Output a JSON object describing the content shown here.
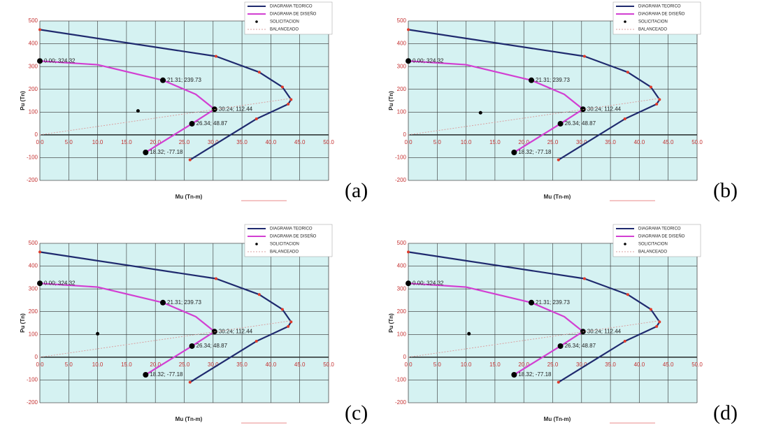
{
  "chart_data": [
    {
      "type": "line",
      "panel_label": "(a)",
      "x_label": "Mu (Tn-m)",
      "y_label": "Pu (Tn)",
      "xlim": [
        0,
        50
      ],
      "ylim": [
        -200,
        500
      ],
      "xticks": [
        {
          "value": 0,
          "label": "0.0"
        },
        {
          "value": 5,
          "label": "5.0"
        },
        {
          "value": 10,
          "label": "10.0"
        },
        {
          "value": 15,
          "label": "15.0"
        },
        {
          "value": 20,
          "label": "20.0"
        },
        {
          "value": 25,
          "label": "25.0"
        },
        {
          "value": 30,
          "label": "30.0"
        },
        {
          "value": 35,
          "label": "35.0"
        },
        {
          "value": 40,
          "label": "40.0"
        },
        {
          "value": 45,
          "label": "45.0"
        },
        {
          "value": 50,
          "label": "50.0"
        }
      ],
      "yticks": [
        -200,
        -100,
        0,
        100,
        200,
        300,
        400,
        500
      ],
      "grid": true,
      "legend": "top-right",
      "series": [
        {
          "name": "DIAGRAMA TEORICO",
          "color": "#1f2a6e",
          "marker_color": "#e03a2a",
          "style": "line",
          "x": [
            0,
            30.5,
            38,
            42,
            43.5,
            43,
            37.5,
            26
          ],
          "values": [
            462,
            345,
            275,
            210,
            155,
            135,
            70,
            -110
          ]
        },
        {
          "name": "DIAGRAMA DE DISEÑO",
          "color": "#d23fd2",
          "style": "line",
          "x": [
            0,
            10,
            21.31,
            27,
            30.24,
            26.34,
            18.32
          ],
          "values": [
            324.32,
            308,
            239.73,
            178,
            112.44,
            48.87,
            -77.18
          ],
          "value_labels": [
            "0.00; 324.32",
            null,
            "21.31; 239.73",
            null,
            "30.24; 112.44",
            "26.34; 48.87",
            "18.32; -77.18"
          ]
        },
        {
          "name": "SOLICITACION",
          "color": "#000000",
          "style": "points",
          "x": [
            17
          ],
          "values": [
            105
          ]
        },
        {
          "name": "BALANCEADO",
          "color": "#d9a0a0",
          "style": "dotted",
          "x": [
            0,
            43.5
          ],
          "values": [
            0,
            160
          ]
        }
      ]
    },
    {
      "type": "line",
      "panel_label": "(b)",
      "x_label": "Mu (Tn-m)",
      "y_label": "Pu (Tn)",
      "xlim": [
        0,
        50
      ],
      "ylim": [
        -200,
        500
      ],
      "xticks": [
        {
          "value": 0,
          "label": "0.0"
        },
        {
          "value": 5,
          "label": "5.0"
        },
        {
          "value": 10,
          "label": "10.0"
        },
        {
          "value": 15,
          "label": "15.0"
        },
        {
          "value": 20,
          "label": "20.0"
        },
        {
          "value": 25,
          "label": "25.0"
        },
        {
          "value": 30,
          "label": "30.0"
        },
        {
          "value": 35,
          "label": "35.0"
        },
        {
          "value": 40,
          "label": "40.0"
        },
        {
          "value": 45,
          "label": "45.0"
        },
        {
          "value": 50,
          "label": "50.0"
        }
      ],
      "yticks": [
        -200,
        -100,
        0,
        100,
        200,
        300,
        400,
        500
      ],
      "grid": true,
      "legend": "top-right",
      "series": [
        {
          "name": "DIAGRAMA TEORICO",
          "color": "#1f2a6e",
          "marker_color": "#e03a2a",
          "style": "line",
          "x": [
            0,
            30.5,
            38,
            42,
            43.5,
            43,
            37.5,
            26
          ],
          "values": [
            462,
            345,
            275,
            210,
            155,
            135,
            70,
            -110
          ]
        },
        {
          "name": "DIAGRAMA DE DISEÑO",
          "color": "#d23fd2",
          "style": "line",
          "x": [
            0,
            10,
            21.31,
            27,
            30.24,
            26.34,
            18.32
          ],
          "values": [
            324.32,
            308,
            239.73,
            178,
            112.44,
            48.87,
            -77.18
          ],
          "value_labels": [
            "0.00; 324.32",
            null,
            "21.31; 239.73",
            null,
            "30.24; 112.44",
            "26.34; 48.87",
            "18.32; -77.18"
          ]
        },
        {
          "name": "SOLICITACION",
          "color": "#000000",
          "style": "points",
          "x": [
            12.5
          ],
          "values": [
            97
          ]
        },
        {
          "name": "BALANCEADO",
          "color": "#d9a0a0",
          "style": "dotted",
          "x": [
            0,
            43.5
          ],
          "values": [
            0,
            160
          ]
        }
      ]
    },
    {
      "type": "line",
      "panel_label": "(c)",
      "x_label": "Mu (Tn-m)",
      "y_label": "Pu (Tn)",
      "xlim": [
        0,
        50
      ],
      "ylim": [
        -200,
        500
      ],
      "xticks": [
        {
          "value": 0,
          "label": "0.0"
        },
        {
          "value": 5,
          "label": "5.0"
        },
        {
          "value": 10,
          "label": "10.0"
        },
        {
          "value": 15,
          "label": "15.0"
        },
        {
          "value": 20,
          "label": "20.0"
        },
        {
          "value": 25,
          "label": "25.0"
        },
        {
          "value": 30,
          "label": "30.0"
        },
        {
          "value": 35,
          "label": "35.0"
        },
        {
          "value": 40,
          "label": "40.0"
        },
        {
          "value": 45,
          "label": "45.0"
        },
        {
          "value": 50,
          "label": "50.0"
        }
      ],
      "yticks": [
        -200,
        -100,
        0,
        100,
        200,
        300,
        400,
        500
      ],
      "grid": true,
      "legend": "top-right",
      "series": [
        {
          "name": "DIAGRAMA TEORICO",
          "color": "#1f2a6e",
          "marker_color": "#e03a2a",
          "style": "line",
          "x": [
            0,
            30.5,
            38,
            42,
            43.5,
            43,
            37.5,
            26
          ],
          "values": [
            462,
            345,
            275,
            210,
            155,
            135,
            70,
            -110
          ]
        },
        {
          "name": "DIAGRAMA DE DISEÑO",
          "color": "#d23fd2",
          "style": "line",
          "x": [
            0,
            10,
            21.31,
            27,
            30.24,
            26.34,
            18.32
          ],
          "values": [
            324.32,
            308,
            239.73,
            178,
            112.44,
            48.87,
            -77.18
          ],
          "value_labels": [
            "0.00; 324.32",
            null,
            "21.31; 239.73",
            null,
            "30.24; 112.44",
            "26.34; 48.87",
            "18.32; -77.18"
          ]
        },
        {
          "name": "SOLICITACION",
          "color": "#000000",
          "style": "points",
          "x": [
            10
          ],
          "values": [
            103
          ]
        },
        {
          "name": "BALANCEADO",
          "color": "#d9a0a0",
          "style": "dotted",
          "x": [
            0,
            43.5
          ],
          "values": [
            0,
            160
          ]
        }
      ]
    },
    {
      "type": "line",
      "panel_label": "(d)",
      "x_label": "Mu (Tn-m)",
      "y_label": "Pu (Tn)",
      "xlim": [
        0,
        50
      ],
      "ylim": [
        -200,
        500
      ],
      "xticks": [
        {
          "value": 0,
          "label": "0.0"
        },
        {
          "value": 5,
          "label": "5.0"
        },
        {
          "value": 10,
          "label": "10.0"
        },
        {
          "value": 15,
          "label": "15.0"
        },
        {
          "value": 20,
          "label": "20.0"
        },
        {
          "value": 25,
          "label": "25.0"
        },
        {
          "value": 30,
          "label": "30.0"
        },
        {
          "value": 35,
          "label": "35.0"
        },
        {
          "value": 40,
          "label": "40.0"
        },
        {
          "value": 45,
          "label": "45.0"
        },
        {
          "value": 50,
          "label": "50.0"
        }
      ],
      "yticks": [
        -200,
        -100,
        0,
        100,
        200,
        300,
        400,
        500
      ],
      "grid": true,
      "legend": "top-right",
      "series": [
        {
          "name": "DIAGRAMA TEORICO",
          "color": "#1f2a6e",
          "marker_color": "#e03a2a",
          "style": "line",
          "x": [
            0,
            30.5,
            38,
            42,
            43.5,
            43,
            37.5,
            26
          ],
          "values": [
            462,
            345,
            275,
            210,
            155,
            135,
            70,
            -110
          ]
        },
        {
          "name": "DIAGRAMA DE DISEÑO",
          "color": "#d23fd2",
          "style": "line",
          "x": [
            0,
            10,
            21.31,
            27,
            30.24,
            26.34,
            18.32
          ],
          "values": [
            324.32,
            308,
            239.73,
            178,
            112.44,
            48.87,
            -77.18
          ],
          "value_labels": [
            "0.00; 324.32",
            null,
            "21.31; 239.73",
            null,
            "30.24; 112.44",
            "26.34; 48.87",
            "18.32; -77.18"
          ]
        },
        {
          "name": "SOLICITACION",
          "color": "#000000",
          "style": "points",
          "x": [
            10.5
          ],
          "values": [
            103
          ]
        },
        {
          "name": "BALANCEADO",
          "color": "#d9a0a0",
          "style": "dotted",
          "x": [
            0,
            43.5
          ],
          "values": [
            0,
            160
          ]
        }
      ]
    }
  ]
}
